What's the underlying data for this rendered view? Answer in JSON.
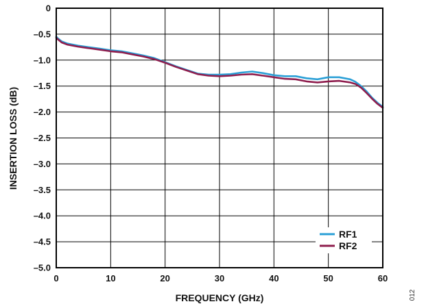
{
  "chart_data": {
    "type": "line",
    "xlabel": "FREQUENCY (GHz)",
    "ylabel": "INSERTION LOSS (dB)",
    "xlim": [
      0,
      60
    ],
    "ylim": [
      -5.0,
      0
    ],
    "grid": true,
    "legend_position": "bottom-right",
    "x_ticks": [
      0,
      10,
      20,
      30,
      40,
      50,
      60
    ],
    "x_tick_labels": [
      "0",
      "10",
      "20",
      "30",
      "40",
      "50",
      "60"
    ],
    "y_ticks": [
      0,
      -0.5,
      -1.0,
      -1.5,
      -2.0,
      -2.5,
      -3.0,
      -3.5,
      -4.0,
      -4.5,
      -5.0
    ],
    "y_tick_labels": [
      "0",
      "–0.5",
      "–1.0",
      "–1.5",
      "–2.0",
      "–2.5",
      "–3.0",
      "–3.5",
      "–4.0",
      "–4.5",
      "–5.0"
    ],
    "series": [
      {
        "name": "RF1",
        "color": "#2a9fd6",
        "x": [
          0,
          0.3,
          1,
          2,
          4,
          6,
          8,
          10,
          12,
          14,
          16,
          18,
          20,
          22,
          24,
          26,
          28,
          30,
          32,
          34,
          36,
          38,
          40,
          42,
          44,
          46,
          48,
          50,
          52,
          54,
          55,
          56,
          57,
          58,
          59,
          60
        ],
        "y": [
          -0.55,
          -0.58,
          -0.64,
          -0.68,
          -0.72,
          -0.75,
          -0.78,
          -0.81,
          -0.83,
          -0.87,
          -0.91,
          -0.96,
          -1.04,
          -1.12,
          -1.19,
          -1.26,
          -1.28,
          -1.28,
          -1.27,
          -1.24,
          -1.22,
          -1.25,
          -1.29,
          -1.31,
          -1.31,
          -1.35,
          -1.37,
          -1.33,
          -1.33,
          -1.37,
          -1.42,
          -1.5,
          -1.6,
          -1.72,
          -1.82,
          -1.9
        ]
      },
      {
        "name": "RF2",
        "color": "#8e1d4d",
        "x": [
          0,
          0.3,
          1,
          2,
          4,
          6,
          8,
          10,
          12,
          14,
          16,
          18,
          20,
          22,
          24,
          26,
          28,
          30,
          32,
          34,
          36,
          38,
          40,
          42,
          44,
          46,
          48,
          50,
          52,
          54,
          55,
          56,
          57,
          58,
          59,
          60
        ],
        "y": [
          -0.57,
          -0.6,
          -0.66,
          -0.7,
          -0.74,
          -0.77,
          -0.8,
          -0.83,
          -0.85,
          -0.89,
          -0.93,
          -0.98,
          -1.05,
          -1.13,
          -1.2,
          -1.27,
          -1.3,
          -1.31,
          -1.3,
          -1.28,
          -1.27,
          -1.3,
          -1.33,
          -1.36,
          -1.37,
          -1.41,
          -1.43,
          -1.41,
          -1.4,
          -1.43,
          -1.46,
          -1.53,
          -1.63,
          -1.74,
          -1.84,
          -1.92
        ]
      }
    ]
  },
  "figure_id": "012"
}
